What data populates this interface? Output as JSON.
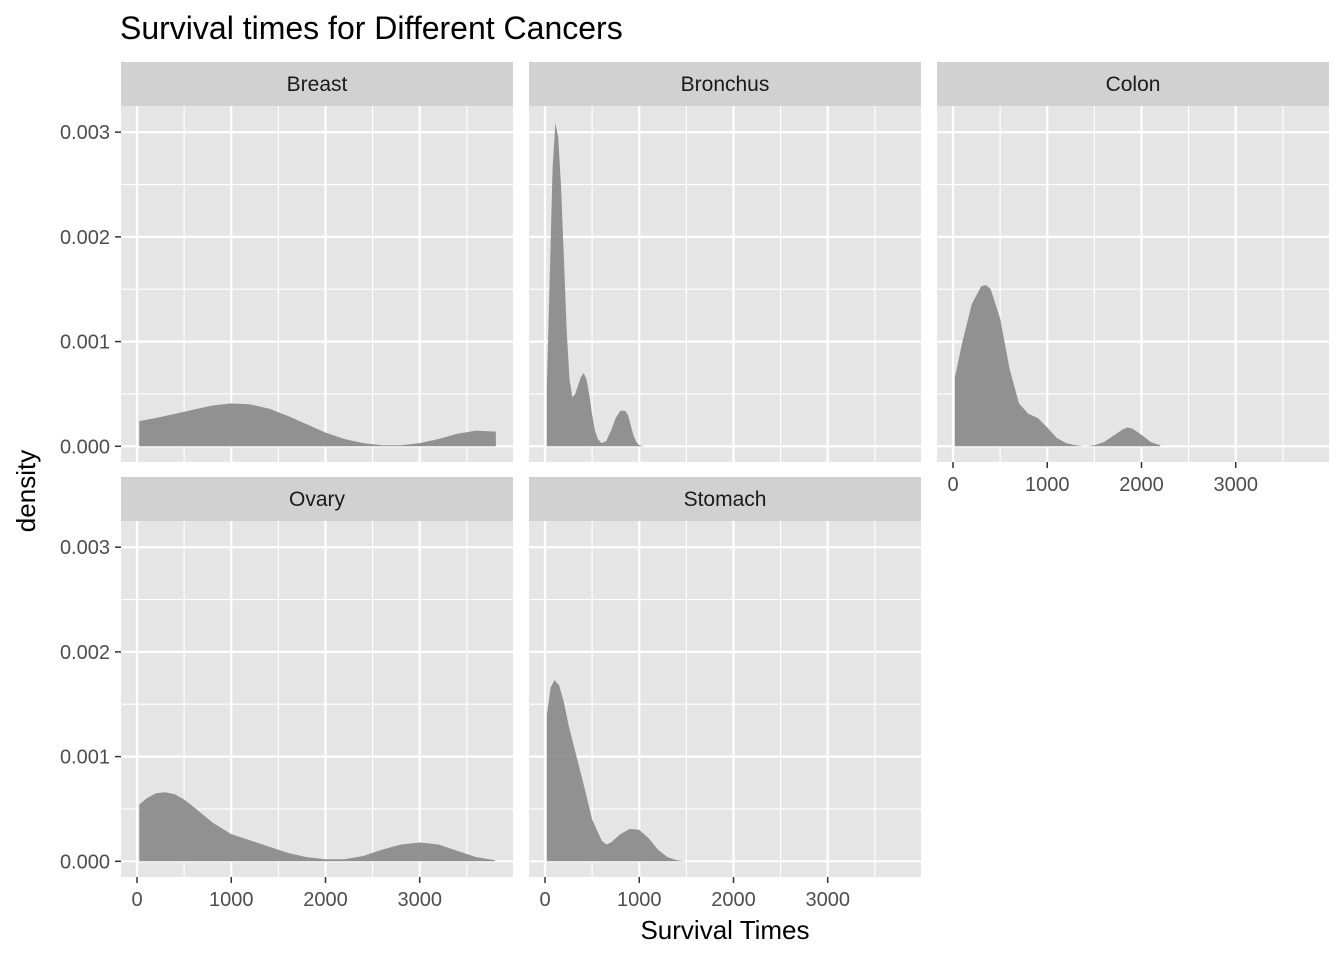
{
  "chart_data": {
    "type": "area",
    "title": "Survival times for Different Cancers",
    "xlabel": "Survival Times",
    "ylabel": "density",
    "xlim": [
      -170,
      3990
    ],
    "ylim": [
      -0.00015,
      0.00325
    ],
    "x_ticks": [
      0,
      1000,
      2000,
      3000
    ],
    "y_ticks": [
      0.0,
      0.001,
      0.002,
      0.003
    ],
    "y_tick_labels": [
      "0.000",
      "0.001",
      "0.002",
      "0.003"
    ],
    "grid": true,
    "facet_layout": "wrap-3-columns",
    "colors": {
      "panel_background": "#e5e5e5",
      "gridline": "#ffffff",
      "strip_background": "#d1d1d1",
      "fill": "#8c8c8c",
      "tick_text": "#4d4d4d"
    },
    "facets": [
      {
        "name": "Breast",
        "x": [
          24,
          200,
          400,
          600,
          800,
          1000,
          1200,
          1400,
          1600,
          1800,
          2000,
          2200,
          2400,
          2600,
          2800,
          3000,
          3200,
          3400,
          3600,
          3808
        ],
        "y": [
          0.00024,
          0.00027,
          0.00031,
          0.00035,
          0.00039,
          0.00041,
          0.0004,
          0.00036,
          0.00029,
          0.00021,
          0.00013,
          7e-05,
          3e-05,
          1e-05,
          1e-05,
          3e-05,
          7e-05,
          0.00012,
          0.00015,
          0.00014
        ]
      },
      {
        "name": "Bronchus",
        "x": [
          20,
          50,
          80,
          110,
          140,
          170,
          200,
          230,
          260,
          290,
          320,
          350,
          380,
          410,
          440,
          470,
          500,
          530,
          560,
          600,
          650,
          700,
          750,
          800,
          850,
          880,
          910,
          940,
          970,
          1000,
          1050
        ],
        "y": [
          0.00058,
          0.0016,
          0.00265,
          0.00309,
          0.00295,
          0.00248,
          0.0018,
          0.0011,
          0.00064,
          0.00047,
          0.0005,
          0.00058,
          0.00066,
          0.0007,
          0.00064,
          0.00049,
          0.0003,
          0.00015,
          7e-05,
          3e-05,
          5e-05,
          0.00015,
          0.00027,
          0.00034,
          0.00034,
          0.0003,
          0.0002,
          0.0001,
          4e-05,
          1e-05,
          0.0
        ]
      },
      {
        "name": "Colon",
        "x": [
          20,
          100,
          200,
          300,
          350,
          400,
          500,
          600,
          700,
          800,
          900,
          1000,
          1100,
          1200,
          1300,
          1400,
          1500,
          1600,
          1700,
          1800,
          1850,
          1900,
          2000,
          2100,
          2200
        ],
        "y": [
          0.00066,
          0.001,
          0.00136,
          0.00153,
          0.00154,
          0.0015,
          0.00122,
          0.00074,
          0.00041,
          0.00031,
          0.00027,
          0.00018,
          8e-05,
          3e-05,
          1e-05,
          0.0,
          1e-05,
          4e-05,
          0.0001,
          0.00016,
          0.00018,
          0.00017,
          0.00011,
          4e-05,
          1e-05
        ]
      },
      {
        "name": "Ovary",
        "x": [
          24,
          100,
          200,
          300,
          400,
          500,
          600,
          800,
          1000,
          1200,
          1400,
          1600,
          1800,
          2000,
          2200,
          2400,
          2600,
          2800,
          3000,
          3200,
          3400,
          3600,
          3800
        ],
        "y": [
          0.00054,
          0.0006,
          0.00065,
          0.00066,
          0.00064,
          0.00059,
          0.00052,
          0.00037,
          0.00026,
          0.0002,
          0.00014,
          8e-05,
          4e-05,
          2e-05,
          2e-05,
          5e-05,
          0.00011,
          0.00016,
          0.00018,
          0.00016,
          0.0001,
          4e-05,
          1e-05
        ]
      },
      {
        "name": "Stomach",
        "x": [
          20,
          60,
          100,
          150,
          200,
          250,
          300,
          400,
          500,
          600,
          650,
          700,
          800,
          900,
          1000,
          1100,
          1200,
          1300,
          1400,
          1500
        ],
        "y": [
          0.0014,
          0.00166,
          0.00173,
          0.00168,
          0.00152,
          0.0013,
          0.00112,
          0.00077,
          0.0004,
          0.0002,
          0.00016,
          0.00018,
          0.00026,
          0.00031,
          0.0003,
          0.00022,
          0.00011,
          4e-05,
          1e-05,
          0.0
        ]
      }
    ]
  }
}
